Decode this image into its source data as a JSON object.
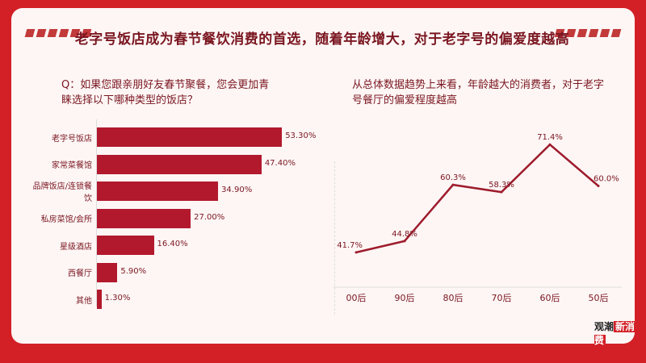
{
  "title": "老字号饭店成为春节餐饮消费的首选，随着年龄增大，对于老字号的偏爱度越高",
  "question": "Q：如果您跟亲朋好友春节聚餐，您会更加青睐选择以下哪种类型的饭店？",
  "note": "从总体数据趋势上来看，年龄越大的消费者，对于老字号餐厅的偏爱程度越高",
  "logo": {
    "part1": "观潮",
    "part2": "新消费"
  },
  "chart_data": [
    {
      "type": "bar",
      "orientation": "horizontal",
      "categories": [
        "老字号饭店",
        "家常菜餐馆",
        "品牌饭店/连锁餐饮",
        "私房菜馆/会所",
        "星级酒店",
        "西餐厅",
        "其他"
      ],
      "values": [
        53.3,
        47.4,
        34.9,
        27.0,
        16.4,
        5.9,
        1.3
      ],
      "value_labels": [
        "53.30%",
        "47.40%",
        "34.90%",
        "27.00%",
        "16.40%",
        "5.90%",
        "1.30%"
      ],
      "color": "#b2192d",
      "xlim": [
        0,
        60
      ]
    },
    {
      "type": "line",
      "categories": [
        "00后",
        "90后",
        "80后",
        "70后",
        "60后",
        "50后"
      ],
      "values": [
        41.7,
        44.8,
        60.3,
        58.3,
        71.4,
        60.0
      ],
      "value_labels": [
        "41.7%",
        "44.8%",
        "60.3%",
        "58.3%",
        "71.4%",
        "60.0%"
      ],
      "color": "#9e1b2b",
      "ylim": [
        35,
        75
      ]
    }
  ]
}
